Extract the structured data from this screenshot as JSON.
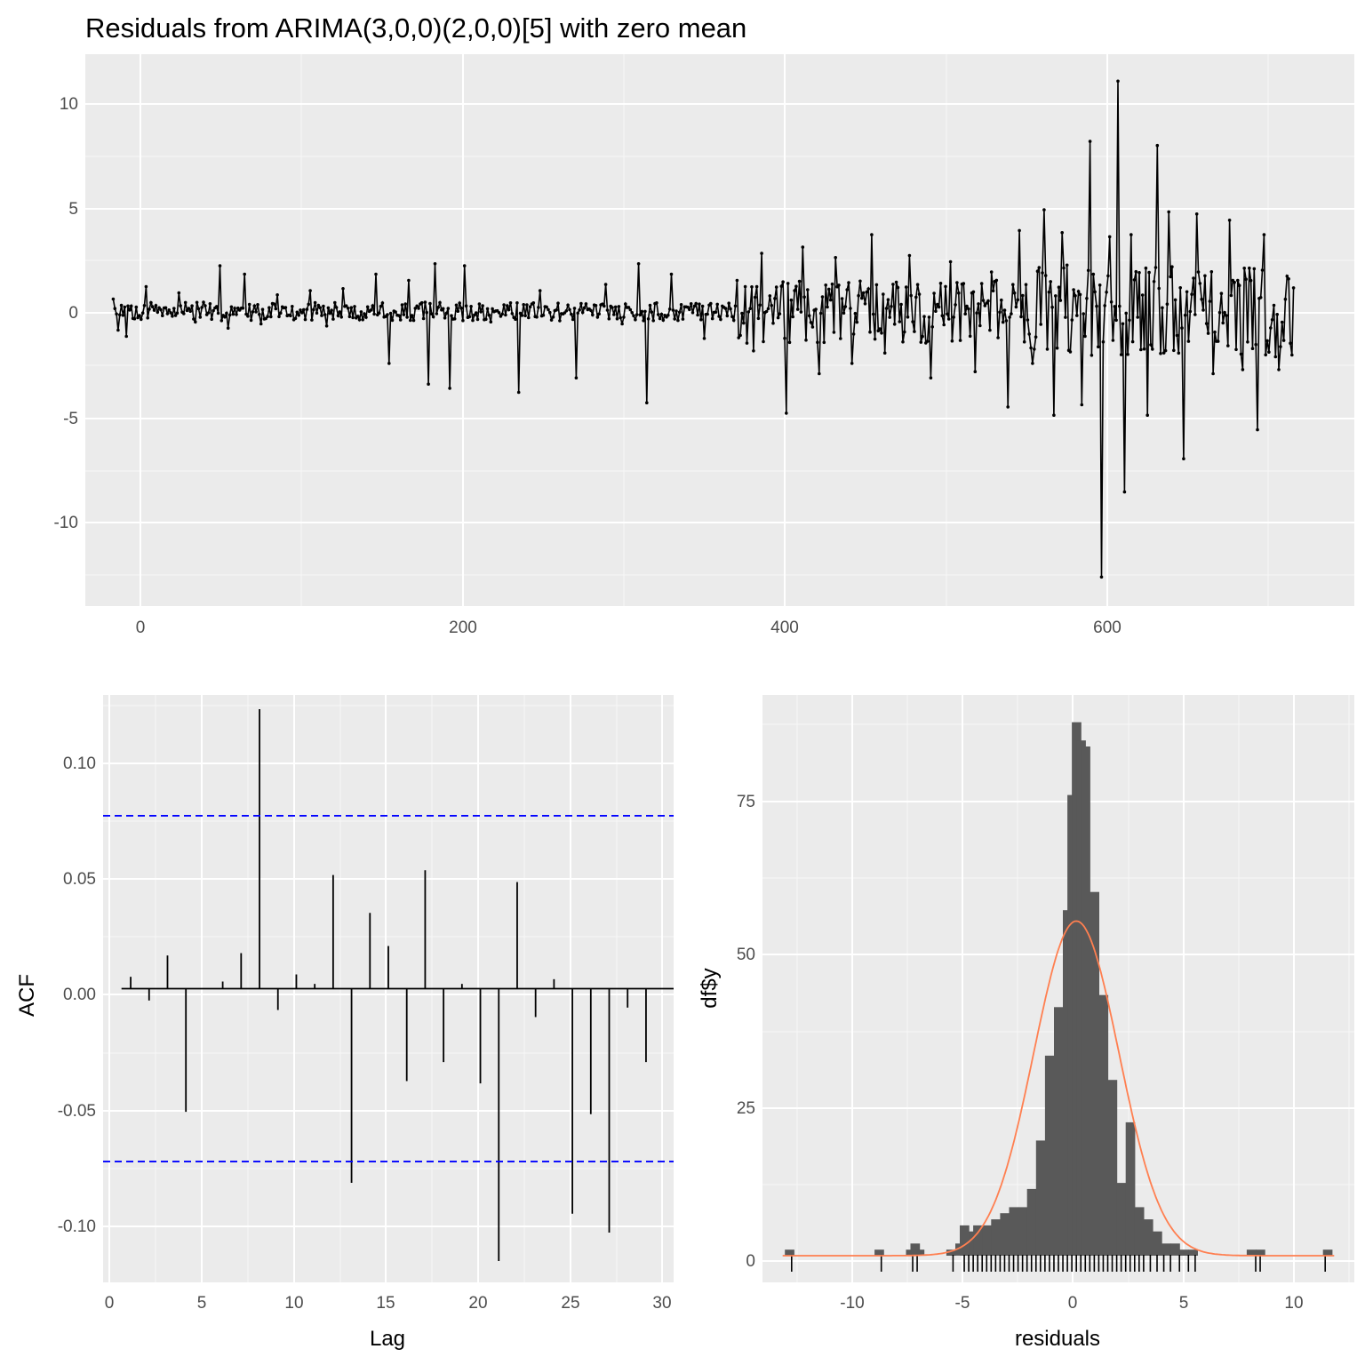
{
  "residuals_plot": {
    "title": "Residuals from ARIMA(3,0,0)(2,0,0)[5] with zero mean",
    "xlabel": "",
    "ylabel": "",
    "x_ticks": [
      "0",
      "200",
      "400",
      "600"
    ],
    "y_ticks": [
      "-10",
      "-5",
      "0",
      "5",
      "10"
    ]
  },
  "acf_plot": {
    "xlabel": "Lag",
    "ylabel": "ACF",
    "x_ticks": [
      "0",
      "5",
      "10",
      "15",
      "20",
      "25",
      "30"
    ],
    "y_ticks": [
      "-0.10",
      "-0.05",
      "0.00",
      "0.05",
      "0.10"
    ]
  },
  "hist_plot": {
    "xlabel": "residuals",
    "ylabel": "df$y",
    "x_ticks": [
      "-10",
      "-5",
      "0",
      "5",
      "10"
    ],
    "y_ticks": [
      "0",
      "25",
      "50",
      "75"
    ]
  },
  "colors": {
    "panel_bg": "#ebebeb",
    "grid": "#ffffff",
    "line": "#000000",
    "bar_fill": "#595959",
    "ci_line": "#0000ff",
    "density_line": "#ff7f50"
  },
  "chart_data": [
    {
      "type": "line",
      "title": "Residuals from ARIMA(3,0,0)(2,0,0)[5] with zero mean",
      "xlim": [
        -17,
        756
      ],
      "ylim": [
        -14.2,
        12.4
      ],
      "n": 720,
      "series": [
        {
          "points": [
            [
              0,
              0.6
            ],
            [
              3,
              -0.9
            ],
            [
              8,
              -1.2
            ],
            [
              15,
              -0.3
            ],
            [
              20,
              1.2
            ],
            [
              30,
              -0.2
            ],
            [
              40,
              0.9
            ],
            [
              50,
              -0.5
            ],
            [
              65,
              2.2
            ],
            [
              70,
              -0.8
            ],
            [
              80,
              1.8
            ],
            [
              90,
              -0.6
            ],
            [
              100,
              0.8
            ],
            [
              110,
              -0.4
            ],
            [
              120,
              1.0
            ],
            [
              130,
              -0.7
            ],
            [
              140,
              1.1
            ],
            [
              150,
              -0.4
            ],
            [
              160,
              1.8
            ],
            [
              168,
              -2.5
            ],
            [
              180,
              1.5
            ],
            [
              192,
              -3.5
            ],
            [
              196,
              2.3
            ],
            [
              205,
              -3.7
            ],
            [
              214,
              2.2
            ],
            [
              230,
              -0.5
            ],
            [
              247,
              -3.9
            ],
            [
              260,
              1.0
            ],
            [
              282,
              -3.2
            ],
            [
              300,
              1.3
            ],
            [
              310,
              -0.6
            ],
            [
              320,
              2.3
            ],
            [
              325,
              -4.4
            ],
            [
              340,
              1.8
            ],
            [
              360,
              -1.3
            ],
            [
              380,
              1.5
            ],
            [
              390,
              -1.9
            ],
            [
              395,
              2.8
            ],
            [
              410,
              -4.9
            ],
            [
              420,
              3.1
            ],
            [
              430,
              -3.0
            ],
            [
              440,
              2.6
            ],
            [
              450,
              -2.5
            ],
            [
              462,
              3.7
            ],
            [
              470,
              -2.0
            ],
            [
              485,
              2.7
            ],
            [
              498,
              -3.2
            ],
            [
              510,
              2.4
            ],
            [
              525,
              -2.9
            ],
            [
              535,
              1.9
            ],
            [
              545,
              -4.6
            ],
            [
              552,
              3.9
            ],
            [
              560,
              -2.5
            ],
            [
              567,
              4.9
            ],
            [
              573,
              -5.0
            ],
            [
              578,
              3.8
            ],
            [
              590,
              -4.5
            ],
            [
              595,
              8.2
            ],
            [
              602,
              -12.8
            ],
            [
              607,
              3.6
            ],
            [
              612,
              11.1
            ],
            [
              616,
              -8.7
            ],
            [
              620,
              3.7
            ],
            [
              630,
              -5.0
            ],
            [
              636,
              8.0
            ],
            [
              643,
              4.8
            ],
            [
              652,
              -7.1
            ],
            [
              660,
              4.7
            ],
            [
              670,
              -3.0
            ],
            [
              680,
              4.4
            ],
            [
              688,
              -2.8
            ],
            [
              697,
              -5.7
            ],
            [
              701,
              3.7
            ],
            [
              710,
              -2.8
            ],
            [
              715,
              1.7
            ],
            [
              718,
              -2.1
            ]
          ]
        }
      ]
    },
    {
      "type": "bar",
      "xlabel": "Lag",
      "ylabel": "ACF",
      "xlim": [
        -0.5,
        30.5
      ],
      "ylim": [
        -0.124,
        0.124
      ],
      "lags": [
        1,
        2,
        3,
        4,
        5,
        6,
        7,
        8,
        9,
        10,
        11,
        12,
        13,
        14,
        15,
        16,
        17,
        18,
        19,
        20,
        21,
        22,
        23,
        24,
        25,
        26,
        27,
        28,
        29
      ],
      "values": [
        0.005,
        -0.005,
        0.014,
        -0.052,
        0.0,
        0.003,
        0.015,
        0.118,
        -0.009,
        0.006,
        0.002,
        0.048,
        -0.082,
        0.032,
        0.018,
        -0.039,
        0.05,
        -0.031,
        0.002,
        -0.04,
        -0.115,
        0.045,
        -0.012,
        0.004,
        -0.095,
        -0.053,
        -0.103,
        -0.008,
        -0.031
      ],
      "ci": 0.073
    },
    {
      "type": "bar",
      "xlabel": "residuals",
      "ylabel": "df$y",
      "xlim": [
        -14.0,
        12.4
      ],
      "ylim": [
        -4.4,
        92.5
      ],
      "bin_width": 0.4,
      "bins": [
        [
          -12.8,
          1
        ],
        [
          -8.8,
          1
        ],
        [
          -7.4,
          1
        ],
        [
          -7.2,
          2
        ],
        [
          -7.0,
          1
        ],
        [
          -5.6,
          1
        ],
        [
          -5.2,
          2
        ],
        [
          -5.0,
          5
        ],
        [
          -4.6,
          4
        ],
        [
          -4.4,
          5
        ],
        [
          -4.0,
          5
        ],
        [
          -3.6,
          6
        ],
        [
          -3.2,
          7
        ],
        [
          -2.8,
          8
        ],
        [
          -2.4,
          8
        ],
        [
          -2.0,
          11
        ],
        [
          -1.6,
          19
        ],
        [
          -1.2,
          33
        ],
        [
          -0.8,
          41
        ],
        [
          -0.4,
          57
        ],
        [
          -0.2,
          76
        ],
        [
          0.0,
          88
        ],
        [
          0.2,
          85
        ],
        [
          0.4,
          84
        ],
        [
          0.8,
          60
        ],
        [
          1.2,
          43
        ],
        [
          1.6,
          29
        ],
        [
          2.0,
          12
        ],
        [
          2.4,
          22
        ],
        [
          2.8,
          8
        ],
        [
          3.2,
          6
        ],
        [
          3.6,
          4
        ],
        [
          4.0,
          2
        ],
        [
          4.4,
          2
        ],
        [
          4.8,
          1
        ],
        [
          5.2,
          1
        ],
        [
          7.8,
          1
        ],
        [
          8.2,
          1
        ],
        [
          11.2,
          1
        ]
      ],
      "rug": [
        -12.7,
        -8.7,
        -7.3,
        -7.1,
        -5.5,
        -5.0,
        -4.8,
        -4.6,
        -4.4,
        -4.2,
        -4.0,
        -3.8,
        -3.6,
        -3.4,
        -3.2,
        -3.0,
        -2.8,
        -2.6,
        -2.4,
        -2.2,
        -2.0,
        -1.8,
        -1.6,
        -1.4,
        -1.2,
        -1.0,
        -0.8,
        -0.6,
        -0.4,
        -0.2,
        0.0,
        0.2,
        0.4,
        0.6,
        0.8,
        1.0,
        1.2,
        1.4,
        1.6,
        1.8,
        2.0,
        2.2,
        2.4,
        2.6,
        2.8,
        3.0,
        3.3,
        3.6,
        3.9,
        4.2,
        4.6,
        5.0,
        5.3,
        8.0,
        8.2,
        11.1
      ],
      "density": {
        "mean": 0.0,
        "sd": 1.9,
        "peak": 55.2
      }
    }
  ]
}
